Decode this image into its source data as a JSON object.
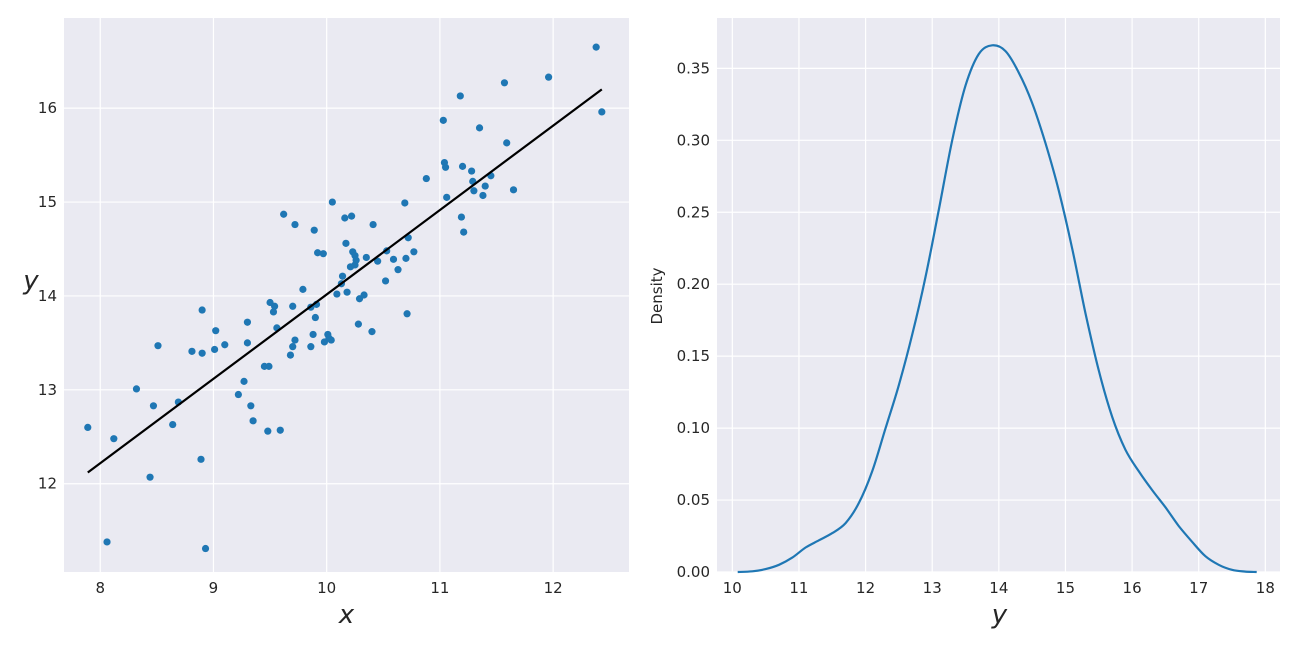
{
  "chart_data": [
    {
      "type": "scatter",
      "xlabel": "x",
      "ylabel": "y",
      "xlim": [
        7.68,
        12.67
      ],
      "ylim": [
        11.06,
        16.96
      ],
      "xticks": [
        "8",
        "9",
        "10",
        "11",
        "12"
      ],
      "yticks": [
        "12",
        "13",
        "14",
        "15",
        "16"
      ],
      "grid": true,
      "point_color": "#1f77b4",
      "points": [
        [
          7.89,
          12.6
        ],
        [
          8.06,
          11.38
        ],
        [
          8.12,
          12.48
        ],
        [
          8.32,
          13.01
        ],
        [
          8.44,
          12.07
        ],
        [
          8.47,
          12.83
        ],
        [
          8.51,
          13.47
        ],
        [
          8.64,
          12.63
        ],
        [
          8.69,
          12.87
        ],
        [
          8.81,
          13.41
        ],
        [
          8.89,
          12.26
        ],
        [
          8.9,
          13.85
        ],
        [
          8.9,
          13.39
        ],
        [
          8.93,
          11.31
        ],
        [
          9.01,
          13.43
        ],
        [
          9.02,
          13.63
        ],
        [
          9.1,
          13.48
        ],
        [
          9.22,
          12.95
        ],
        [
          9.27,
          13.09
        ],
        [
          9.3,
          13.72
        ],
        [
          9.3,
          13.5
        ],
        [
          9.33,
          12.83
        ],
        [
          9.35,
          12.67
        ],
        [
          9.45,
          13.25
        ],
        [
          9.48,
          12.56
        ],
        [
          9.49,
          13.25
        ],
        [
          9.5,
          13.93
        ],
        [
          9.53,
          13.83
        ],
        [
          9.54,
          13.89
        ],
        [
          9.56,
          13.66
        ],
        [
          9.59,
          12.57
        ],
        [
          9.62,
          14.87
        ],
        [
          9.68,
          13.37
        ],
        [
          9.7,
          13.89
        ],
        [
          9.7,
          13.46
        ],
        [
          9.72,
          13.53
        ],
        [
          9.72,
          14.76
        ],
        [
          9.79,
          14.07
        ],
        [
          9.86,
          13.88
        ],
        [
          9.86,
          13.46
        ],
        [
          9.88,
          13.59
        ],
        [
          9.89,
          14.7
        ],
        [
          9.9,
          13.77
        ],
        [
          9.91,
          13.91
        ],
        [
          9.92,
          14.46
        ],
        [
          9.97,
          14.45
        ],
        [
          9.98,
          13.51
        ],
        [
          10.01,
          13.59
        ],
        [
          10.02,
          13.55
        ],
        [
          10.04,
          13.53
        ],
        [
          10.05,
          15.0
        ],
        [
          10.09,
          14.02
        ],
        [
          10.13,
          14.13
        ],
        [
          10.14,
          14.21
        ],
        [
          10.16,
          14.83
        ],
        [
          10.17,
          14.56
        ],
        [
          10.18,
          14.04
        ],
        [
          10.21,
          14.31
        ],
        [
          10.22,
          14.85
        ],
        [
          10.23,
          14.47
        ],
        [
          10.25,
          14.33
        ],
        [
          10.25,
          14.43
        ],
        [
          10.26,
          14.38
        ],
        [
          10.28,
          13.7
        ],
        [
          10.29,
          13.97
        ],
        [
          10.33,
          14.01
        ],
        [
          10.35,
          14.41
        ],
        [
          10.4,
          13.62
        ],
        [
          10.41,
          14.76
        ],
        [
          10.45,
          14.37
        ],
        [
          10.52,
          14.16
        ],
        [
          10.53,
          14.48
        ],
        [
          10.59,
          14.39
        ],
        [
          10.63,
          14.28
        ],
        [
          10.69,
          14.99
        ],
        [
          10.7,
          14.4
        ],
        [
          10.71,
          13.81
        ],
        [
          10.72,
          14.62
        ],
        [
          10.77,
          14.47
        ],
        [
          10.88,
          15.25
        ],
        [
          11.03,
          15.87
        ],
        [
          11.04,
          15.42
        ],
        [
          11.05,
          15.37
        ],
        [
          11.06,
          15.05
        ],
        [
          11.18,
          16.13
        ],
        [
          11.19,
          14.84
        ],
        [
          11.2,
          15.38
        ],
        [
          11.21,
          14.68
        ],
        [
          11.28,
          15.33
        ],
        [
          11.29,
          15.22
        ],
        [
          11.3,
          15.12
        ],
        [
          11.35,
          15.79
        ],
        [
          11.38,
          15.07
        ],
        [
          11.4,
          15.17
        ],
        [
          11.45,
          15.28
        ],
        [
          11.57,
          16.27
        ],
        [
          11.59,
          15.63
        ],
        [
          11.65,
          15.13
        ],
        [
          11.96,
          16.33
        ],
        [
          12.38,
          16.65
        ],
        [
          12.43,
          15.96
        ]
      ],
      "fit_line": {
        "x": [
          7.89,
          12.43
        ],
        "y": [
          12.12,
          16.2
        ],
        "color": "#000000"
      }
    },
    {
      "type": "line",
      "xlabel": "y",
      "ylabel": "Density",
      "xlim": [
        9.77,
        18.22
      ],
      "ylim": [
        0.0,
        0.385
      ],
      "xticks": [
        "10",
        "11",
        "12",
        "13",
        "14",
        "15",
        "16",
        "17",
        "18"
      ],
      "yticks": [
        "0.00",
        "0.05",
        "0.10",
        "0.15",
        "0.20",
        "0.25",
        "0.30",
        "0.35"
      ],
      "grid": true,
      "line_color": "#1f77b4",
      "x": [
        10.08,
        10.3,
        10.5,
        10.7,
        10.9,
        11.1,
        11.3,
        11.5,
        11.7,
        11.9,
        12.1,
        12.3,
        12.5,
        12.7,
        12.9,
        13.1,
        13.3,
        13.5,
        13.7,
        13.9,
        14.1,
        14.3,
        14.5,
        14.7,
        14.9,
        15.1,
        15.3,
        15.5,
        15.7,
        15.9,
        16.1,
        16.3,
        16.5,
        16.7,
        16.9,
        17.1,
        17.3,
        17.5,
        17.7,
        17.87
      ],
      "y": [
        0.0,
        0.0005,
        0.002,
        0.005,
        0.01,
        0.017,
        0.022,
        0.027,
        0.034,
        0.048,
        0.07,
        0.1,
        0.13,
        0.165,
        0.205,
        0.252,
        0.3,
        0.338,
        0.36,
        0.366,
        0.362,
        0.347,
        0.326,
        0.298,
        0.265,
        0.225,
        0.18,
        0.14,
        0.108,
        0.085,
        0.07,
        0.057,
        0.045,
        0.032,
        0.021,
        0.011,
        0.005,
        0.0015,
        0.0003,
        0.0
      ]
    }
  ]
}
